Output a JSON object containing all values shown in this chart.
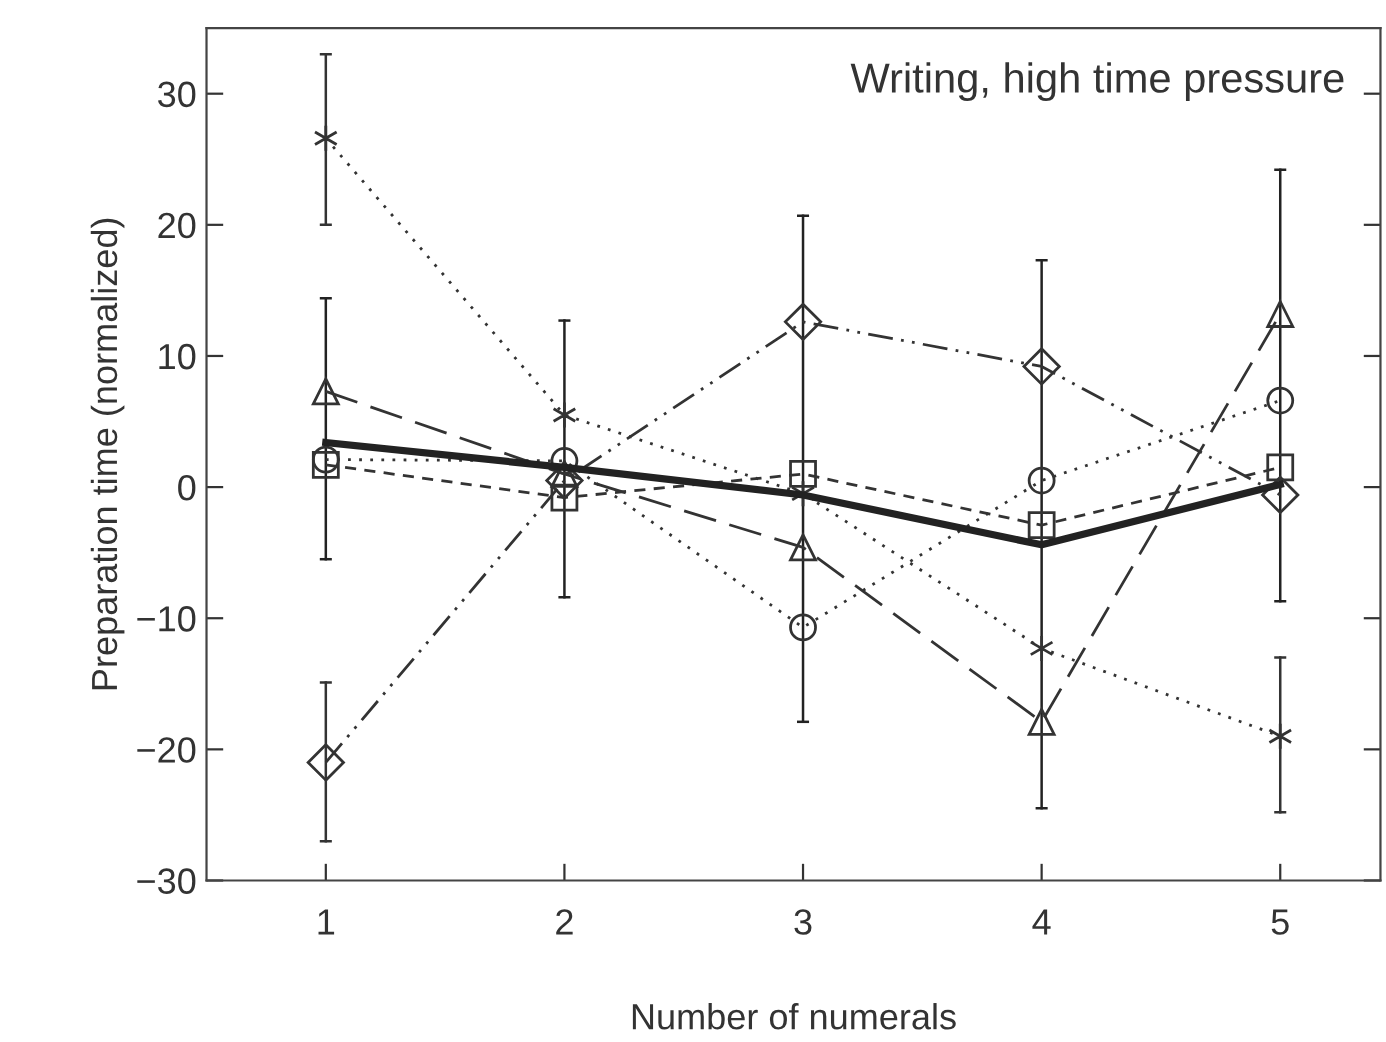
{
  "chart_data": {
    "type": "line",
    "title": "Writing, high time pressure",
    "xlabel": "Number of numerals",
    "ylabel": "Preparation time (normalized)",
    "x": [
      1,
      2,
      3,
      4,
      5
    ],
    "xlim": [
      0.5,
      5.42
    ],
    "xticks": [
      1,
      2,
      3,
      4,
      5
    ],
    "ylim": [
      -30,
      35
    ],
    "yticks": [
      -30,
      -20,
      -10,
      0,
      10,
      20,
      30
    ],
    "grid": false,
    "legend": false,
    "series": [
      {
        "color": "#333333",
        "marker": "cross",
        "line_style": "dotted",
        "values": [
          26.6,
          5.5,
          -0.5,
          -12.3,
          -19
        ],
        "errors": [
          [
            20,
            33
          ],
          null,
          null,
          null,
          [
            -24.8,
            -13
          ]
        ]
      },
      {
        "color": "#333333",
        "marker": "triangle",
        "line_style": "dashed",
        "values": [
          7.3,
          1,
          -4.6,
          -17.9,
          13.2
        ]
      },
      {
        "color": "#333333",
        "marker": "square",
        "line_style": "dashed",
        "values": [
          1.7,
          -0.8,
          1,
          -2.9,
          1.5
        ]
      },
      {
        "color": "#333333",
        "marker": "circle",
        "line_style": "dotted",
        "values": [
          2.1,
          2,
          -10.7,
          0.5,
          6.6
        ]
      },
      {
        "color": "#333333",
        "marker": "diamond",
        "line_style": "dashed",
        "values": [
          -21,
          0.5,
          12.6,
          9.2,
          -0.6
        ],
        "errors": [
          [
            -27,
            -14.9
          ],
          null,
          null,
          null,
          null
        ]
      },
      {
        "color": "#222222",
        "marker": "none",
        "line_style": "solid",
        "values": [
          3.4,
          1.5,
          -0.6,
          -4.4,
          0.2
        ],
        "errors": [
          [
            -5.5,
            14.4
          ],
          [
            -8.4,
            12.7
          ],
          [
            -17.9,
            20.7
          ],
          [
            -24.5,
            17.3
          ],
          [
            -8.7,
            24.2
          ]
        ]
      }
    ]
  }
}
